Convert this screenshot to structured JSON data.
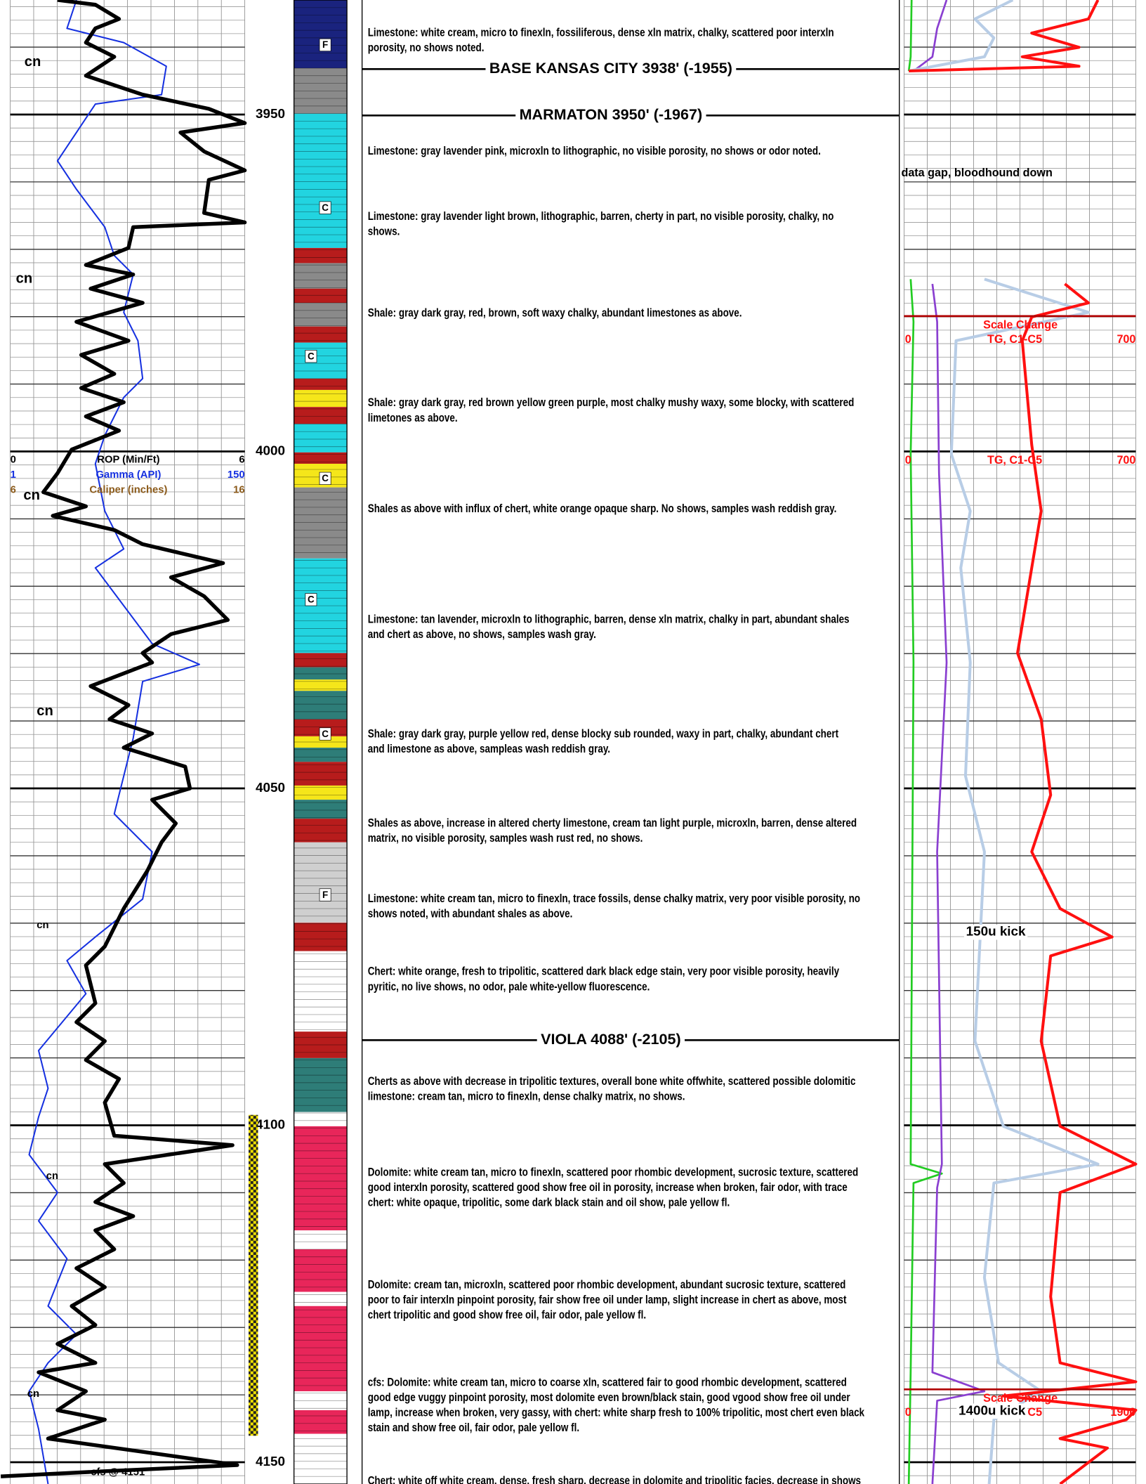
{
  "depth_labels": [
    3950,
    4000,
    4050,
    4100,
    4150
  ],
  "left_track_headers": {
    "rop": {
      "min": "0",
      "name": "ROP (Min/Ft)",
      "max": "6"
    },
    "gamma": {
      "min": "1",
      "name": "Gamma (API)",
      "max": "150"
    },
    "caliper": {
      "min": "6",
      "name": "Caliper (inches)",
      "max": "16"
    }
  },
  "curve_notes": [
    "cn",
    "cn",
    "cn",
    "cn",
    "cn",
    "cn",
    "cn"
  ],
  "cfs_label": "cfs @ 4151'",
  "lithology_symbols": [
    "F",
    "C",
    "C",
    "C",
    "C",
    "C",
    "F"
  ],
  "tops": [
    "BASE KANSAS CITY  3938'  (-1955)",
    "MARMATON  3950'  (-1967)",
    "VIOLA  4088'  (-2105)"
  ],
  "descriptions": [
    [
      "Limestone: white cream, micro to finexln, fossiliferous, dense xln matrix, chalky, scattered poor interxln",
      "porosity, no shows noted."
    ],
    [
      "Limestone: gray lavender pink, microxln to lithographic, no visible porosity, no shows or odor noted."
    ],
    [
      "Limestone: gray lavender light brown, lithographic, barren, cherty in part, no visible porosity, chalky, no",
      "shows."
    ],
    [
      "Shale: gray dark gray, red, brown, soft waxy chalky, abundant limestones as above."
    ],
    [
      "Shale: gray dark gray, red brown yellow green purple, most chalky mushy waxy, some blocky, with scattered",
      "limetones as above."
    ],
    [
      "Shales as above with influx of chert, white orange opaque sharp.  No shows, samples wash reddish gray."
    ],
    [
      "Limestone: tan lavender, microxln to lithographic, barren, dense xln matrix, chalky in part, abundant shales",
      "and chert as above, no shows, samples wash gray."
    ],
    [
      "Shale: gray dark gray, purple yellow red, dense blocky sub rounded, waxy in part, chalky, abundant chert",
      "and limestone as above, sampleas wash reddish gray."
    ],
    [
      "Shales as above, increase in altered cherty limestone, cream tan light purple, microxln, barren, dense altered",
      "matrix, no visible porosity, samples wash rust red, no shows."
    ],
    [
      "Limestone: white cream tan, micro to finexln, trace fossils, dense chalky matrix, very poor visible porosity, no",
      "shows noted, with abundant shales as above."
    ],
    [
      "Chert: white orange, fresh to tripolitic, scattered dark black edge stain, very poor visible porosity, heavily",
      "pyritic, no live shows, no odor, pale white-yellow fluorescence."
    ],
    [
      "Cherts as above with decrease in tripolitic textures, overall bone white offwhite, scattered possible dolomitic",
      "limestone: cream tan, micro to finexln, dense chalky matrix, no shows."
    ],
    [
      "Dolomite: white cream tan, micro to finexln, scattered poor rhombic development, sucrosic texture, scattered",
      "good interxln porosity, scattered good show free oil in porosity, increase when broken, fair odor, with trace",
      "chert: white opaque, tripolitic, some dark black stain and oil show, pale yellow fl."
    ],
    [
      "Dolomite: cream tan, microxln, scattered poor rhombic development, abundant sucrosic texture, scattered",
      "poor to fair interxln pinpoint porosity, fair show free oil under lamp, slight increase in chert as above, most",
      "chert tripolitic and good show free oil, fair odor, pale yellow fl."
    ],
    [
      "cfs: Dolomite: white cream tan, micro to coarse xln, scattered fair to good rhombic development, scattered",
      "good edge vuggy pinpoint porosity, most dolomite even brown/black stain, good vgood show free oil under",
      "lamp, increase when broken, very gassy, with chert: white sharp fresh to 100% tripolitic, most chert even black",
      "stain and show free oil, fair odor, pale yellow fl."
    ],
    [
      "Chert: white off white cream, dense, fresh sharp, decrease in dolomite and tripolitic facies, decrease in shows"
    ]
  ],
  "gas_track": {
    "data_gap": "data gap, bloodhound down",
    "scales": [
      {
        "note": "Scale Change",
        "curves": "TG, C1-C5",
        "min": "0",
        "max": "700"
      },
      {
        "curves": "TG, C1-C5",
        "min": "0",
        "max": "700"
      },
      {
        "note": "Scale Change",
        "curves": "TG, C1-C5",
        "min": "0",
        "max": "1900"
      }
    ],
    "kicks": [
      "150u kick",
      "1400u kick"
    ]
  }
}
